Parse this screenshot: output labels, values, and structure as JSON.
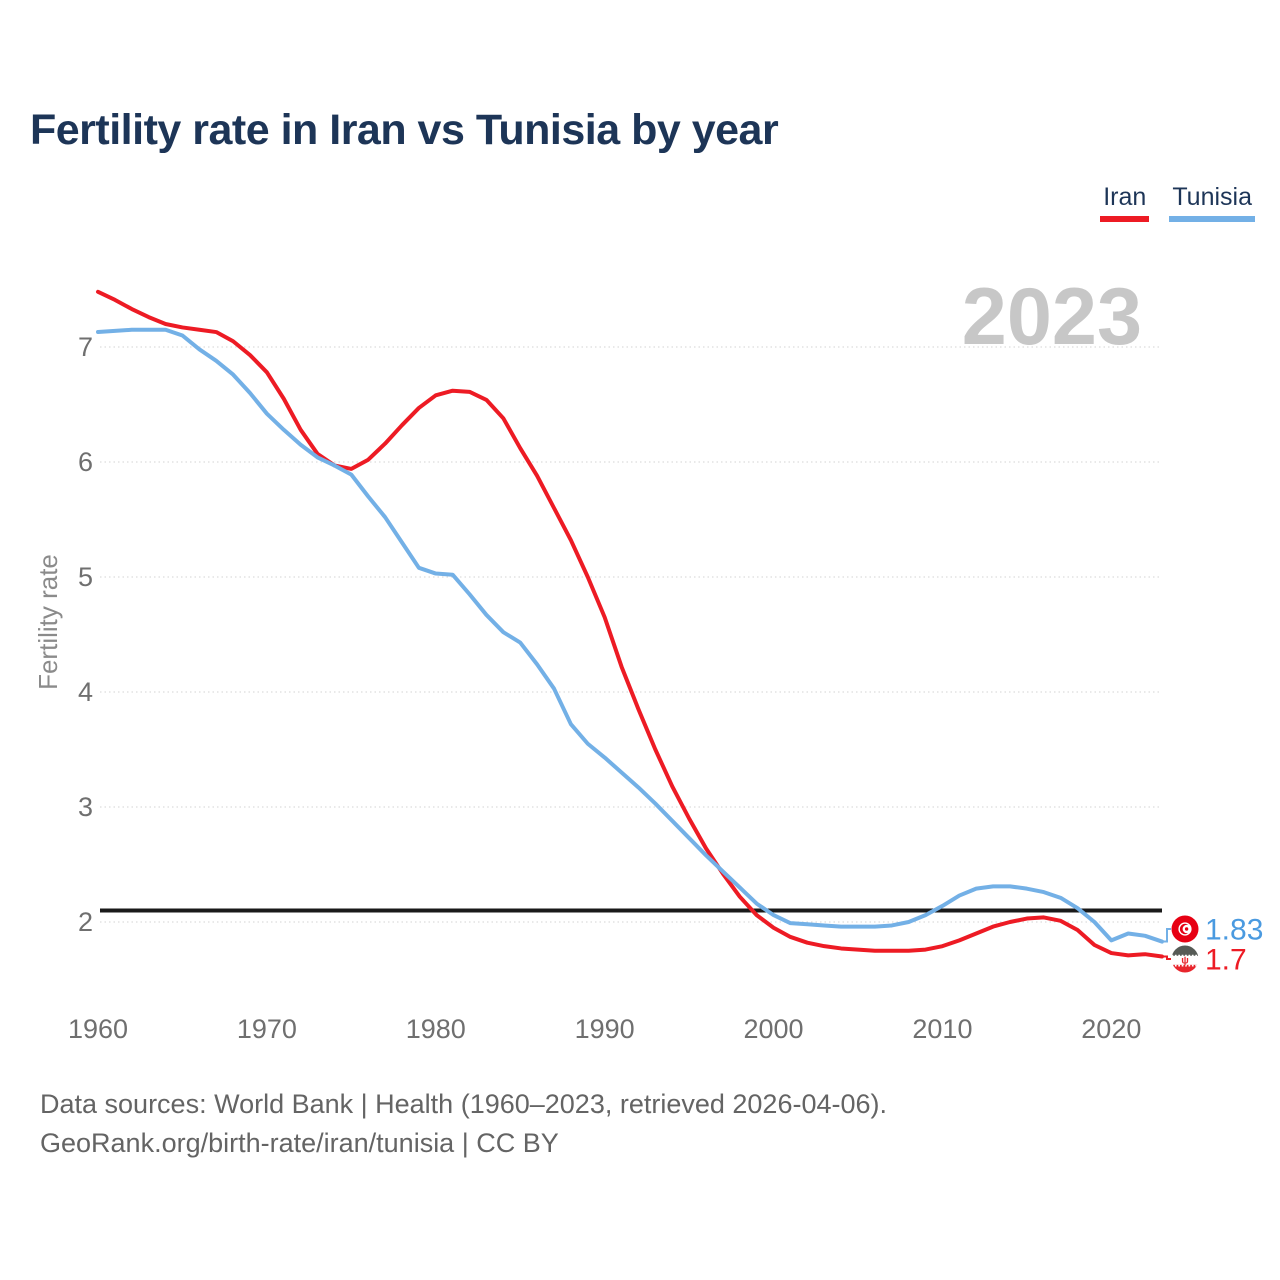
{
  "header": {
    "title": "Fertility rate in Iran vs Tunisia by year"
  },
  "legend": {
    "items": [
      {
        "label": "Iran",
        "color": "#ed1b24"
      },
      {
        "label": "Tunisia",
        "color": "#73b0e6"
      }
    ]
  },
  "footer": {
    "line1": "Data sources: World Bank | Health (1960–2023, retrieved 2026-04-06).",
    "line2": "GeoRank.org/birth-rate/iran/tunisia | CC BY"
  },
  "colors": {
    "iran_line": "#ed1b24",
    "tunisia_line": "#73b0e6",
    "tunisia_label": "#4a9ae0",
    "iran_label": "#ed1b24",
    "title_text": "#1d3557",
    "axis_text": "#6f6f6f",
    "grid": "#dcdcdc",
    "reference_line": "#1a1a1a",
    "watermark": "#c7c7c7",
    "tunisia_flag_red": "#e70013",
    "iran_flag_green_band": "#565b56",
    "iran_flag_red_band": "#e8252c"
  },
  "chart_data": {
    "type": "line",
    "title": "Fertility rate in Iran vs Tunisia by year",
    "xlabel": "",
    "ylabel": "Fertility rate",
    "year_watermark": "2023",
    "xlim": [
      1960,
      2023
    ],
    "ylim": [
      1.55,
      7.6
    ],
    "x_ticks": [
      1960,
      1970,
      1980,
      1990,
      2000,
      2010,
      2020
    ],
    "y_ticks": [
      7,
      6,
      5,
      4,
      3,
      2
    ],
    "grid": "horizontal-dotted",
    "legend_position": "top-right",
    "reference_line": {
      "value": 2.1,
      "label": "replacement-level-line"
    },
    "x": [
      1960,
      1961,
      1962,
      1963,
      1964,
      1965,
      1966,
      1967,
      1968,
      1969,
      1970,
      1971,
      1972,
      1973,
      1974,
      1975,
      1976,
      1977,
      1978,
      1979,
      1980,
      1981,
      1982,
      1983,
      1984,
      1985,
      1986,
      1987,
      1988,
      1989,
      1990,
      1991,
      1992,
      1993,
      1994,
      1995,
      1996,
      1997,
      1998,
      1999,
      2000,
      2001,
      2002,
      2003,
      2004,
      2005,
      2006,
      2007,
      2008,
      2009,
      2010,
      2011,
      2012,
      2013,
      2014,
      2015,
      2016,
      2017,
      2018,
      2019,
      2020,
      2021,
      2022,
      2023
    ],
    "series": [
      {
        "name": "Iran",
        "color": "#ed1b24",
        "end_label": "1.7",
        "end_label_color": "#ed1b24",
        "flag_icon": "iran-flag-icon",
        "values": [
          7.48,
          7.41,
          7.33,
          7.26,
          7.2,
          7.17,
          7.15,
          7.13,
          7.05,
          6.93,
          6.78,
          6.55,
          6.28,
          6.07,
          5.97,
          5.94,
          6.02,
          6.16,
          6.32,
          6.47,
          6.58,
          6.62,
          6.61,
          6.54,
          6.38,
          6.12,
          5.88,
          5.6,
          5.32,
          5.0,
          4.65,
          4.22,
          3.85,
          3.5,
          3.18,
          2.9,
          2.64,
          2.42,
          2.22,
          2.06,
          1.95,
          1.87,
          1.82,
          1.79,
          1.77,
          1.76,
          1.75,
          1.75,
          1.75,
          1.76,
          1.79,
          1.84,
          1.9,
          1.96,
          2.0,
          2.03,
          2.04,
          2.01,
          1.93,
          1.8,
          1.73,
          1.71,
          1.72,
          1.7
        ]
      },
      {
        "name": "Tunisia",
        "color": "#73b0e6",
        "end_label": "1.83",
        "end_label_color": "#4a9ae0",
        "flag_icon": "tunisia-flag-icon",
        "values": [
          7.13,
          7.14,
          7.15,
          7.15,
          7.15,
          7.1,
          6.98,
          6.88,
          6.76,
          6.6,
          6.42,
          6.28,
          6.15,
          6.04,
          5.97,
          5.89,
          5.7,
          5.52,
          5.3,
          5.08,
          5.03,
          5.02,
          4.85,
          4.67,
          4.52,
          4.43,
          4.24,
          4.03,
          3.72,
          3.55,
          3.43,
          3.3,
          3.17,
          3.03,
          2.88,
          2.73,
          2.58,
          2.44,
          2.3,
          2.16,
          2.06,
          1.99,
          1.98,
          1.97,
          1.96,
          1.96,
          1.96,
          1.97,
          2.0,
          2.06,
          2.14,
          2.23,
          2.29,
          2.31,
          2.31,
          2.29,
          2.26,
          2.21,
          2.12,
          2.0,
          1.84,
          1.9,
          1.88,
          1.83
        ]
      }
    ]
  }
}
